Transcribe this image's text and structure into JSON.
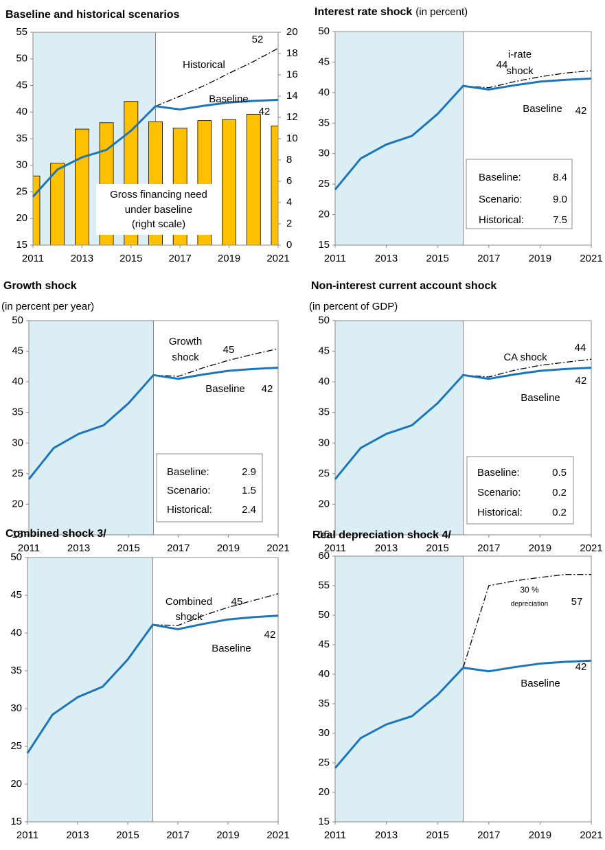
{
  "chart_data": [
    {
      "type": "line",
      "title": "Baseline and historical scenarios",
      "x": [
        2011,
        2012,
        2013,
        2014,
        2015,
        2016,
        2017,
        2018,
        2019,
        2020,
        2021
      ],
      "xlim": [
        2011,
        2021
      ],
      "xticks": [
        2011,
        2013,
        2015,
        2017,
        2019,
        2021
      ],
      "ylim": [
        15,
        55
      ],
      "yticks": [
        15,
        20,
        25,
        30,
        35,
        40,
        45,
        50,
        55
      ],
      "y2lim": [
        0,
        20
      ],
      "y2ticks": [
        0,
        2,
        4,
        6,
        8,
        10,
        12,
        14,
        16,
        18,
        20
      ],
      "shade": [
        2011,
        2016
      ],
      "series": [
        {
          "mark": "bar",
          "axis": "y2",
          "color": "#ffc000",
          "values": [
            6.5,
            7.7,
            10.9,
            11.5,
            13.5,
            11.6,
            11.0,
            11.7,
            11.8,
            12.3,
            11.2
          ]
        },
        {
          "mark": "dashdot",
          "color": "#000000",
          "values": [
            null,
            null,
            null,
            null,
            null,
            41.1,
            43.0,
            45.0,
            47.3,
            49.5,
            52
          ],
          "value_labels": [
            null,
            null,
            null,
            null,
            null,
            null,
            null,
            null,
            null,
            null,
            "52"
          ]
        },
        {
          "mark": "line",
          "color": "#1b75bc",
          "values": [
            24.1,
            29.2,
            31.5,
            32.9,
            36.5,
            41.1,
            40.5,
            41.2,
            41.8,
            42.1,
            42.3
          ],
          "value_labels": [
            null,
            null,
            null,
            null,
            null,
            null,
            null,
            null,
            null,
            null,
            "42"
          ]
        }
      ],
      "annotations": [
        "Historical",
        "Baseline",
        "Gross financing need",
        "under baseline",
        "(right scale)"
      ]
    },
    {
      "type": "line",
      "title": "Interest rate shock",
      "subtitle": "(in percent)",
      "x": [
        2011,
        2012,
        2013,
        2014,
        2015,
        2016,
        2017,
        2018,
        2019,
        2020,
        2021
      ],
      "xlim": [
        2011,
        2021
      ],
      "xticks": [
        2011,
        2013,
        2015,
        2017,
        2019,
        2021
      ],
      "ylim": [
        15,
        50
      ],
      "yticks": [
        15,
        20,
        25,
        30,
        35,
        40,
        45,
        50
      ],
      "shade": [
        2011,
        2016
      ],
      "series": [
        {
          "mark": "dashdot",
          "color": "#000000",
          "values": [
            null,
            null,
            null,
            null,
            null,
            41.1,
            40.8,
            41.8,
            42.6,
            43.2,
            43.6
          ],
          "value_labels": [
            null,
            null,
            null,
            null,
            null,
            null,
            null,
            null,
            null,
            null,
            "44"
          ]
        },
        {
          "mark": "line",
          "color": "#1b75bc",
          "values": [
            24.1,
            29.2,
            31.5,
            32.9,
            36.5,
            41.1,
            40.5,
            41.2,
            41.8,
            42.1,
            42.3
          ],
          "value_labels": [
            null,
            null,
            null,
            null,
            null,
            null,
            null,
            null,
            null,
            null,
            "42"
          ]
        }
      ],
      "annotations": [
        "i-rate",
        "shock",
        "Baseline"
      ],
      "table": [
        [
          "Baseline:",
          "8.4"
        ],
        [
          "Scenario:",
          "9.0"
        ],
        [
          "Historical:",
          "7.5"
        ]
      ]
    },
    {
      "type": "line",
      "title": "Growth shock",
      "subtitle": "(in percent per year)",
      "x": [
        2011,
        2012,
        2013,
        2014,
        2015,
        2016,
        2017,
        2018,
        2019,
        2020,
        2021
      ],
      "xlim": [
        2011,
        2021
      ],
      "xticks": [
        2011,
        2013,
        2015,
        2017,
        2019,
        2021
      ],
      "ylim": [
        15,
        50
      ],
      "yticks": [
        15,
        20,
        25,
        30,
        35,
        40,
        45,
        50
      ],
      "shade": [
        2011,
        2016
      ],
      "series": [
        {
          "mark": "dashdot",
          "color": "#000000",
          "values": [
            null,
            null,
            null,
            null,
            null,
            41.1,
            40.9,
            42.3,
            43.5,
            44.5,
            45.4
          ],
          "value_labels": [
            null,
            null,
            null,
            null,
            null,
            null,
            null,
            null,
            null,
            null,
            "45"
          ]
        },
        {
          "mark": "line",
          "color": "#1b75bc",
          "values": [
            24.1,
            29.2,
            31.5,
            32.9,
            36.5,
            41.1,
            40.5,
            41.2,
            41.8,
            42.1,
            42.3
          ],
          "value_labels": [
            null,
            null,
            null,
            null,
            null,
            null,
            null,
            null,
            null,
            null,
            "42"
          ]
        }
      ],
      "annotations": [
        "Growth",
        "shock",
        "Baseline"
      ],
      "table": [
        [
          "Baseline:",
          "2.9"
        ],
        [
          "Scenario:",
          "1.5"
        ],
        [
          "Historical:",
          "2.4"
        ]
      ]
    },
    {
      "type": "line",
      "title": "Non-interest current account shock",
      "subtitle": "(in percent of GDP)",
      "x": [
        2011,
        2012,
        2013,
        2014,
        2015,
        2016,
        2017,
        2018,
        2019,
        2020,
        2021
      ],
      "xlim": [
        2011,
        2021
      ],
      "xticks": [
        2011,
        2013,
        2015,
        2017,
        2019,
        2021
      ],
      "ylim": [
        15,
        50
      ],
      "yticks": [
        15,
        20,
        25,
        30,
        35,
        40,
        45,
        50
      ],
      "shade": [
        2011,
        2016
      ],
      "series": [
        {
          "mark": "dashdot",
          "color": "#000000",
          "values": [
            null,
            null,
            null,
            null,
            null,
            41.1,
            40.8,
            41.9,
            42.7,
            43.2,
            43.7
          ],
          "value_labels": [
            null,
            null,
            null,
            null,
            null,
            null,
            null,
            null,
            null,
            null,
            "44"
          ]
        },
        {
          "mark": "line",
          "color": "#1b75bc",
          "values": [
            24.1,
            29.2,
            31.5,
            32.9,
            36.5,
            41.1,
            40.5,
            41.2,
            41.8,
            42.1,
            42.3
          ],
          "value_labels": [
            null,
            null,
            null,
            null,
            null,
            null,
            null,
            null,
            null,
            null,
            "42"
          ]
        }
      ],
      "annotations": [
        "CA shock",
        "Baseline"
      ],
      "table": [
        [
          "Baseline:",
          "0.5"
        ],
        [
          "Scenario:",
          "0.2"
        ],
        [
          "Historical:",
          "0.2"
        ]
      ]
    },
    {
      "type": "line",
      "title": "Combined shock  3/",
      "x": [
        2011,
        2012,
        2013,
        2014,
        2015,
        2016,
        2017,
        2018,
        2019,
        2020,
        2021
      ],
      "xlim": [
        2011,
        2021
      ],
      "xticks": [
        2011,
        2013,
        2015,
        2017,
        2019,
        2021
      ],
      "ylim": [
        15,
        50
      ],
      "yticks": [
        15,
        20,
        25,
        30,
        35,
        40,
        45,
        50
      ],
      "shade": [
        2011,
        2016
      ],
      "series": [
        {
          "mark": "dashdot",
          "color": "#000000",
          "values": [
            null,
            null,
            null,
            null,
            null,
            41.1,
            41.0,
            42.3,
            43.4,
            44.3,
            45.2
          ],
          "value_labels": [
            null,
            null,
            null,
            null,
            null,
            null,
            null,
            null,
            null,
            null,
            "45"
          ]
        },
        {
          "mark": "line",
          "color": "#1b75bc",
          "values": [
            24.1,
            29.2,
            31.5,
            32.9,
            36.5,
            41.1,
            40.5,
            41.2,
            41.8,
            42.1,
            42.3
          ],
          "value_labels": [
            null,
            null,
            null,
            null,
            null,
            null,
            null,
            null,
            null,
            null,
            "42"
          ]
        }
      ],
      "annotations": [
        "Combined",
        "shock",
        "Baseline"
      ]
    },
    {
      "type": "line",
      "title": "Real depreciation shock  4/",
      "x": [
        2011,
        2012,
        2013,
        2014,
        2015,
        2016,
        2017,
        2018,
        2019,
        2020,
        2021
      ],
      "xlim": [
        2011,
        2021
      ],
      "xticks": [
        2011,
        2013,
        2015,
        2017,
        2019,
        2021
      ],
      "ylim": [
        15,
        60
      ],
      "yticks": [
        15,
        20,
        25,
        30,
        35,
        40,
        45,
        50,
        55,
        60
      ],
      "shade": [
        2011,
        2016
      ],
      "series": [
        {
          "mark": "dashdot",
          "color": "#000000",
          "values": [
            null,
            null,
            null,
            null,
            null,
            41.1,
            55.0,
            55.8,
            56.4,
            56.9,
            56.9
          ],
          "value_labels": [
            null,
            null,
            null,
            null,
            null,
            null,
            null,
            null,
            null,
            null,
            "57"
          ]
        },
        {
          "mark": "line",
          "color": "#1b75bc",
          "values": [
            24.1,
            29.2,
            31.5,
            32.9,
            36.5,
            41.1,
            40.5,
            41.2,
            41.8,
            42.1,
            42.3
          ],
          "value_labels": [
            null,
            null,
            null,
            null,
            null,
            null,
            null,
            null,
            null,
            null,
            "42"
          ]
        }
      ],
      "annotations": [
        "30 %",
        "depreciation",
        "Baseline"
      ]
    }
  ]
}
